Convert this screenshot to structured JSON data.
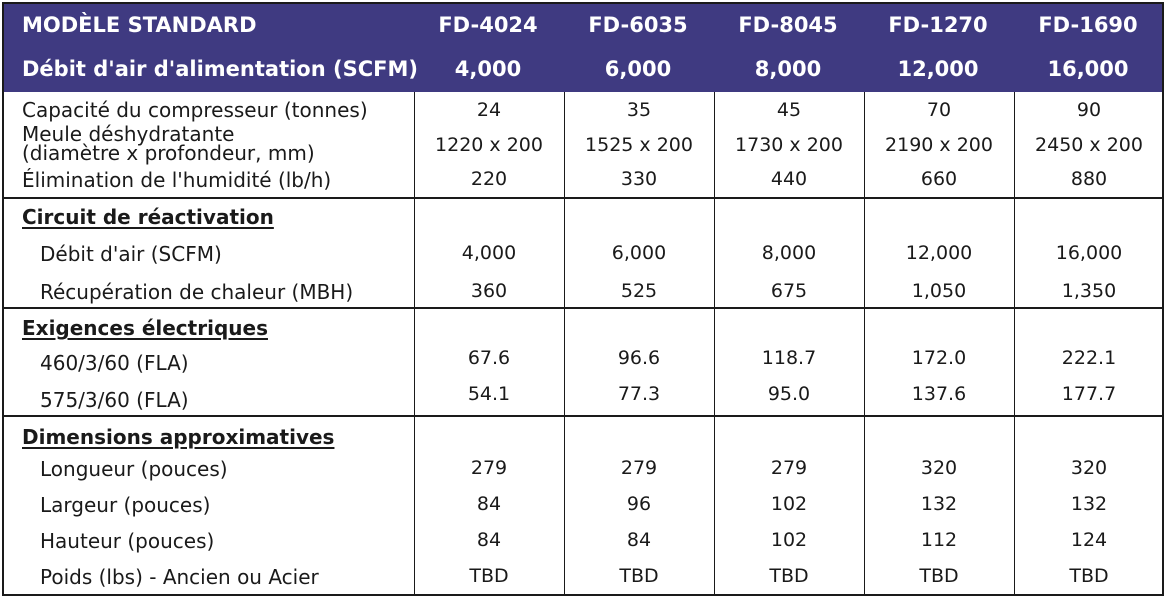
{
  "header": {
    "row1_label": "MODÈLE STANDARD",
    "row2_label": "Débit d'air d'alimentation (SCFM)",
    "models": [
      "FD-4024",
      "FD-6035",
      "FD-8045",
      "FD-1270",
      "FD-1690"
    ],
    "airflow": [
      "4,000",
      "6,000",
      "8,000",
      "12,000",
      "16,000"
    ]
  },
  "general": {
    "compressor_label": "Capacité du compresseur (tonnes)",
    "compressor": [
      "24",
      "35",
      "45",
      "70",
      "90"
    ],
    "wheel_label_line1": "Meule déshydratante",
    "wheel_label_line2": "(diamètre x profondeur, mm)",
    "wheel": [
      "1220 x 200",
      "1525 x 200",
      "1730 x 200",
      "2190 x 200",
      "2450 x 200"
    ],
    "moisture_label": "Élimination de l'humidité (lb/h)",
    "moisture": [
      "220",
      "330",
      "440",
      "660",
      "880"
    ]
  },
  "reactivation": {
    "title": "Circuit de réactivation",
    "airflow_label": "Débit d'air (SCFM)",
    "airflow": [
      "4,000",
      "6,000",
      "8,000",
      "12,000",
      "16,000"
    ],
    "heat_label": "Récupération de chaleur (MBH)",
    "heat": [
      "360",
      "525",
      "675",
      "1,050",
      "1,350"
    ]
  },
  "electrical": {
    "title": "Exigences électriques",
    "v460_label": "460/3/60 (FLA)",
    "v460": [
      "67.6",
      "96.6",
      "118.7",
      "172.0",
      "222.1"
    ],
    "v575_label": "575/3/60 (FLA)",
    "v575": [
      "54.1",
      "77.3",
      "95.0",
      "137.6",
      "177.7"
    ]
  },
  "dimensions": {
    "title": "Dimensions approximatives",
    "length_label": "Longueur (pouces)",
    "length": [
      "279",
      "279",
      "279",
      "320",
      "320"
    ],
    "width_label": "Largeur (pouces)",
    "width": [
      "84",
      "96",
      "102",
      "132",
      "132"
    ],
    "height_label": "Hauteur (pouces)",
    "height": [
      "84",
      "84",
      "102",
      "112",
      "124"
    ],
    "weight_label": "Poids (lbs) - Ancien ou Acier",
    "weight": [
      "TBD",
      "TBD",
      "TBD",
      "TBD",
      "TBD"
    ]
  },
  "colors": {
    "header_bg": "#3f3a81",
    "header_text": "#ffffff",
    "grid": "#1a1a1a"
  }
}
